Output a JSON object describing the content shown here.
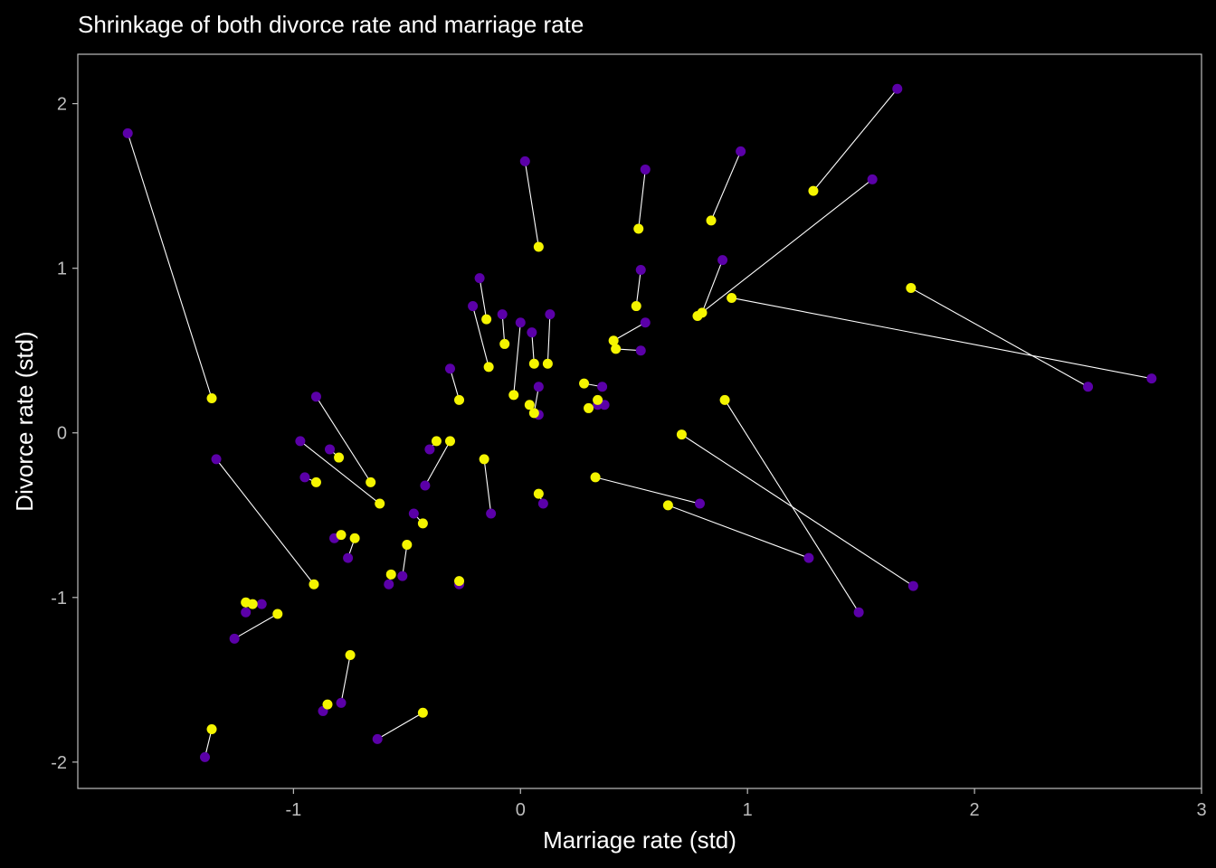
{
  "chart_data": {
    "type": "scatter",
    "title": "Shrinkage of both divorce rate and marriage rate",
    "xlabel": "Marriage rate (std)",
    "ylabel": "Divorce rate (std)",
    "xlim": [
      -1.95,
      3.0
    ],
    "ylim": [
      -2.16,
      2.3
    ],
    "x_ticks": [
      -1,
      0,
      1,
      2,
      3
    ],
    "y_ticks": [
      -2,
      -1,
      0,
      1,
      2
    ],
    "x_tick_labels": [
      "-1",
      "0",
      "1",
      "2",
      "3"
    ],
    "y_tick_labels": [
      "-2",
      "-1",
      "0",
      "1",
      "2"
    ],
    "grid": false,
    "legend": "none",
    "colors": {
      "background": "#000000",
      "observed": "#5b00a8",
      "estimated": "#f5f500",
      "line": "#ffffff",
      "axis": "#bdbdbd"
    },
    "series": [
      {
        "role": "observed",
        "color": "#5b00a8"
      },
      {
        "role": "estimated",
        "color": "#f5f500"
      }
    ],
    "pairs": [
      {
        "observed": [
          -1.73,
          1.82
        ],
        "estimated": [
          -1.36,
          0.21
        ]
      },
      {
        "observed": [
          -1.34,
          -0.16
        ],
        "estimated": [
          -0.91,
          -0.92
        ]
      },
      {
        "observed": [
          -0.9,
          0.22
        ],
        "estimated": [
          -0.66,
          -0.3
        ]
      },
      {
        "observed": [
          -0.97,
          -0.05
        ],
        "estimated": [
          -0.62,
          -0.43
        ]
      },
      {
        "observed": [
          -0.95,
          -0.27
        ],
        "estimated": [
          -0.9,
          -0.3
        ]
      },
      {
        "observed": [
          -0.84,
          -0.1
        ],
        "estimated": [
          -0.8,
          -0.15
        ]
      },
      {
        "observed": [
          -0.82,
          -0.64
        ],
        "estimated": [
          -0.79,
          -0.62
        ]
      },
      {
        "observed": [
          -0.76,
          -0.76
        ],
        "estimated": [
          -0.73,
          -0.64
        ]
      },
      {
        "observed": [
          -0.58,
          -0.92
        ],
        "estimated": [
          -0.57,
          -0.86
        ]
      },
      {
        "observed": [
          -0.52,
          -0.87
        ],
        "estimated": [
          -0.5,
          -0.68
        ]
      },
      {
        "observed": [
          -0.47,
          -0.49
        ],
        "estimated": [
          -0.43,
          -0.55
        ]
      },
      {
        "observed": [
          -0.4,
          -0.1
        ],
        "estimated": [
          -0.37,
          -0.05
        ]
      },
      {
        "observed": [
          -0.42,
          -0.32
        ],
        "estimated": [
          -0.31,
          -0.05
        ]
      },
      {
        "observed": [
          -0.27,
          -0.92
        ],
        "estimated": [
          -0.27,
          -0.9
        ]
      },
      {
        "observed": [
          -0.13,
          -0.49
        ],
        "estimated": [
          -0.16,
          -0.16
        ]
      },
      {
        "observed": [
          -0.31,
          0.39
        ],
        "estimated": [
          -0.27,
          0.2
        ]
      },
      {
        "observed": [
          -0.21,
          0.77
        ],
        "estimated": [
          -0.14,
          0.4
        ]
      },
      {
        "observed": [
          -0.18,
          0.94
        ],
        "estimated": [
          -0.15,
          0.69
        ]
      },
      {
        "observed": [
          -0.08,
          0.72
        ],
        "estimated": [
          -0.07,
          0.54
        ]
      },
      {
        "observed": [
          0.0,
          0.67
        ],
        "estimated": [
          -0.03,
          0.23
        ]
      },
      {
        "observed": [
          0.02,
          1.65
        ],
        "estimated": [
          0.08,
          1.13
        ]
      },
      {
        "observed": [
          0.05,
          0.61
        ],
        "estimated": [
          0.06,
          0.42
        ]
      },
      {
        "observed": [
          0.13,
          0.72
        ],
        "estimated": [
          0.12,
          0.42
        ]
      },
      {
        "observed": [
          0.08,
          0.11
        ],
        "estimated": [
          0.04,
          0.17
        ]
      },
      {
        "observed": [
          0.08,
          0.28
        ],
        "estimated": [
          0.06,
          0.12
        ]
      },
      {
        "observed": [
          0.1,
          -0.43
        ],
        "estimated": [
          0.08,
          -0.37
        ]
      },
      {
        "observed": [
          0.36,
          0.28
        ],
        "estimated": [
          0.28,
          0.3
        ]
      },
      {
        "observed": [
          0.37,
          0.17
        ],
        "estimated": [
          0.34,
          0.2
        ]
      },
      {
        "observed": [
          0.34,
          0.17
        ],
        "estimated": [
          0.3,
          0.15
        ]
      },
      {
        "observed": [
          0.55,
          0.67
        ],
        "estimated": [
          0.41,
          0.56
        ]
      },
      {
        "observed": [
          0.53,
          0.5
        ],
        "estimated": [
          0.42,
          0.51
        ]
      },
      {
        "observed": [
          0.53,
          0.99
        ],
        "estimated": [
          0.51,
          0.77
        ]
      },
      {
        "observed": [
          0.55,
          1.6
        ],
        "estimated": [
          0.52,
          1.24
        ]
      },
      {
        "observed": [
          0.79,
          -0.43
        ],
        "estimated": [
          0.33,
          -0.27
        ]
      },
      {
        "observed": [
          1.27,
          -0.76
        ],
        "estimated": [
          0.65,
          -0.44
        ]
      },
      {
        "observed": [
          0.89,
          1.05
        ],
        "estimated": [
          0.8,
          0.73
        ]
      },
      {
        "observed": [
          0.97,
          1.71
        ],
        "estimated": [
          0.84,
          1.29
        ]
      },
      {
        "observed": [
          1.55,
          1.54
        ],
        "estimated": [
          0.78,
          0.71
        ]
      },
      {
        "observed": [
          2.78,
          0.33
        ],
        "estimated": [
          0.93,
          0.82
        ]
      },
      {
        "observed": [
          1.66,
          2.09
        ],
        "estimated": [
          1.29,
          1.47
        ]
      },
      {
        "observed": [
          2.5,
          0.28
        ],
        "estimated": [
          1.72,
          0.88
        ]
      },
      {
        "observed": [
          1.73,
          -0.93
        ],
        "estimated": [
          0.71,
          -0.01
        ]
      },
      {
        "observed": [
          1.49,
          -1.09
        ],
        "estimated": [
          0.9,
          0.2
        ]
      },
      {
        "observed": [
          -1.21,
          -1.09
        ],
        "estimated": [
          -1.21,
          -1.03
        ]
      },
      {
        "observed": [
          -1.14,
          -1.04
        ],
        "estimated": [
          -1.18,
          -1.04
        ]
      },
      {
        "observed": [
          -1.26,
          -1.25
        ],
        "estimated": [
          -1.07,
          -1.1
        ]
      },
      {
        "observed": [
          -0.79,
          -1.64
        ],
        "estimated": [
          -0.75,
          -1.35
        ]
      },
      {
        "observed": [
          -0.87,
          -1.69
        ],
        "estimated": [
          -0.85,
          -1.65
        ]
      },
      {
        "observed": [
          -0.63,
          -1.86
        ],
        "estimated": [
          -0.43,
          -1.7
        ]
      },
      {
        "observed": [
          -1.39,
          -1.97
        ],
        "estimated": [
          -1.36,
          -1.8
        ]
      }
    ]
  }
}
